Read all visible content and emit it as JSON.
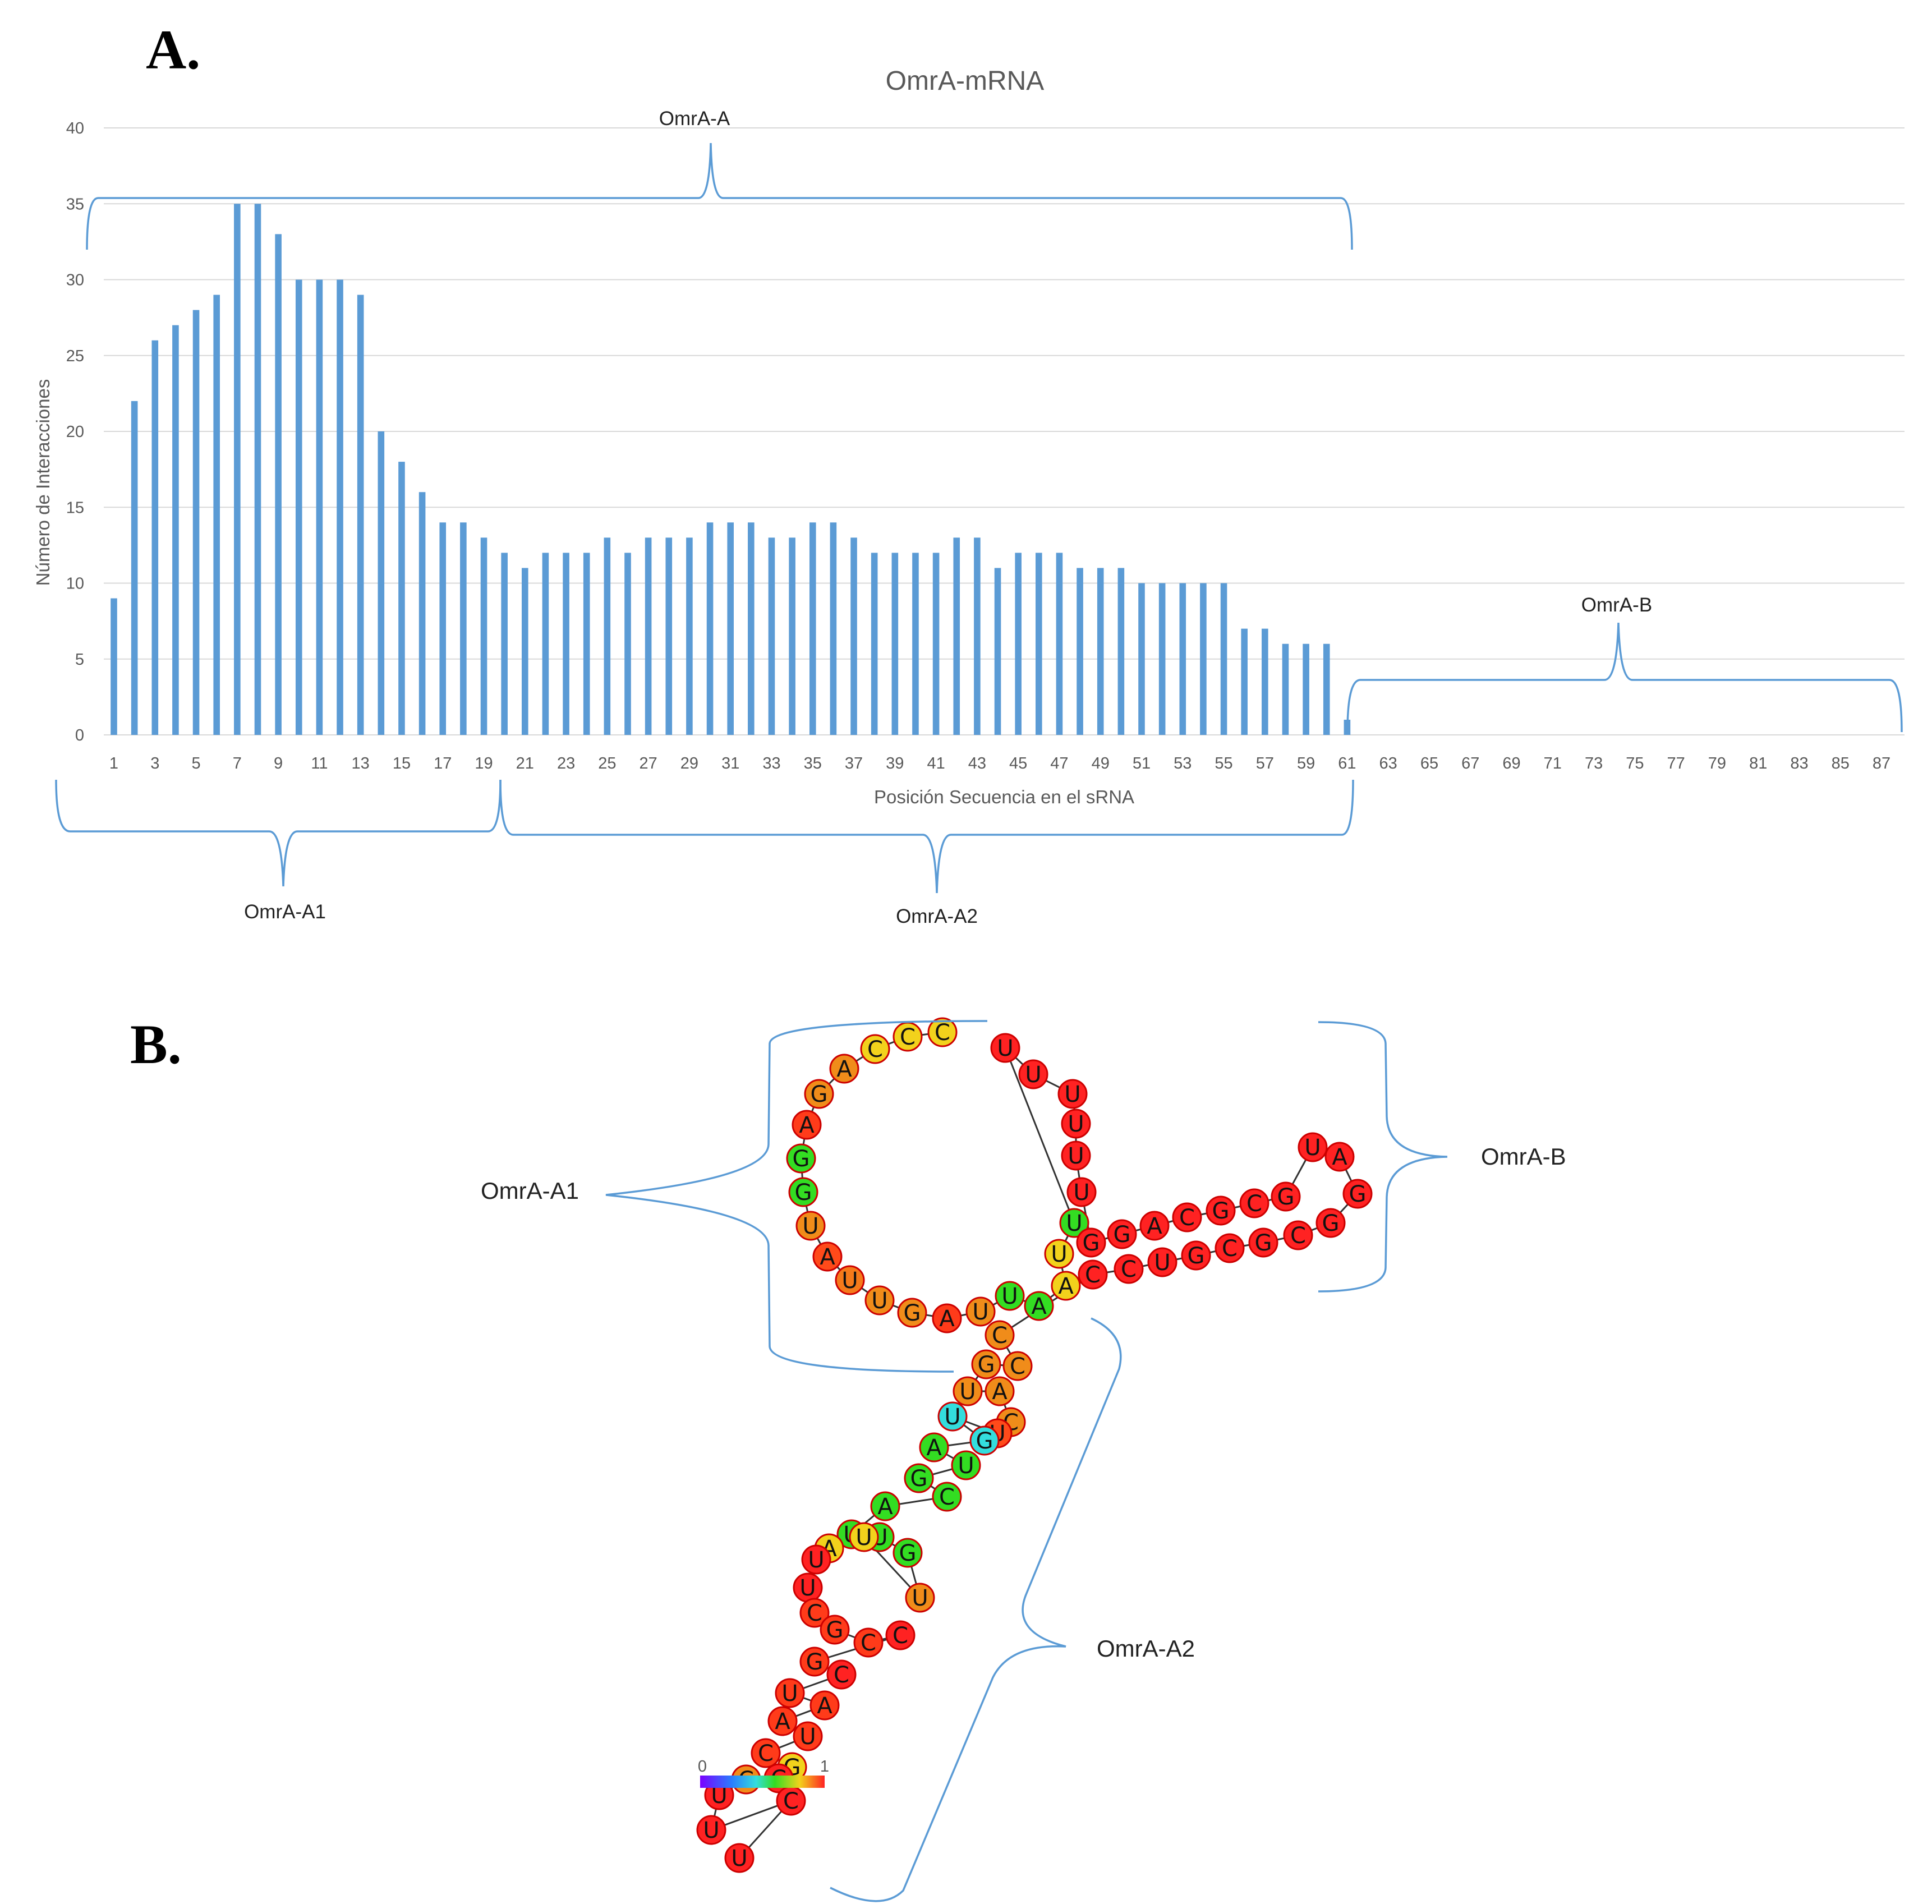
{
  "panel_a_label": "A.",
  "panel_b_label": "B.",
  "chart_data": {
    "type": "bar",
    "title": "OmrA-mRNA",
    "xlabel": "Posición Secuencia en el sRNA",
    "ylabel": "Número de Interacciones",
    "ylim": [
      0,
      40
    ],
    "yticks": [
      0,
      5,
      10,
      15,
      20,
      25,
      30,
      35,
      40
    ],
    "xticks": [
      "1",
      "3",
      "5",
      "7",
      "9",
      "11",
      "13",
      "15",
      "17",
      "19",
      "21",
      "23",
      "25",
      "27",
      "29",
      "31",
      "33",
      "35",
      "37",
      "39",
      "41",
      "43",
      "45",
      "47",
      "49",
      "51",
      "53",
      "55",
      "57",
      "59",
      "61",
      "63",
      "65",
      "67",
      "69",
      "71",
      "73",
      "75",
      "77",
      "79",
      "81",
      "83",
      "85",
      "87"
    ],
    "x_range": [
      1,
      88
    ],
    "grid": true,
    "values": [
      9,
      22,
      26,
      27,
      28,
      29,
      35,
      35,
      33,
      30,
      30,
      30,
      29,
      20,
      18,
      16,
      14,
      14,
      13,
      12,
      11,
      12,
      12,
      12,
      13,
      12,
      13,
      13,
      13,
      14,
      14,
      14,
      13,
      13,
      14,
      14,
      13,
      12,
      12,
      12,
      12,
      13,
      13,
      11,
      12,
      12,
      12,
      11,
      11,
      11,
      10,
      10,
      10,
      10,
      10,
      7,
      7,
      6,
      6,
      6,
      1
    ],
    "annotations": {
      "omra_a": "OmrA-A",
      "omra_a1": "OmrA-A1",
      "omra_a2": "OmrA-A2",
      "omra_b": "OmrA-B"
    }
  },
  "structure": {
    "labels": {
      "omra_a1": "OmrA-A1",
      "omra_a2": "OmrA-A2",
      "omra_b": "OmrA-B"
    },
    "colorbar": {
      "min_label": "0",
      "max_label": "1"
    },
    "nucleotides": [
      {
        "l": "C",
        "c": "#f2d21c"
      },
      {
        "l": "C",
        "c": "#f2d21c"
      },
      {
        "l": "C",
        "c": "#f2d21c"
      },
      {
        "l": "A",
        "c": "#f08c1a"
      },
      {
        "l": "G",
        "c": "#f08c1a"
      },
      {
        "l": "A",
        "c": "#ff3b1a"
      },
      {
        "l": "G",
        "c": "#33dd22"
      },
      {
        "l": "G",
        "c": "#33dd22"
      },
      {
        "l": "U",
        "c": "#f08c1a"
      },
      {
        "l": "A",
        "c": "#ff4a1a"
      },
      {
        "l": "U",
        "c": "#f57a1a"
      },
      {
        "l": "U",
        "c": "#f08c1a"
      },
      {
        "l": "G",
        "c": "#f08c1a"
      },
      {
        "l": "A",
        "c": "#ff3b1a"
      },
      {
        "l": "U",
        "c": "#f08c1a"
      },
      {
        "l": "U",
        "c": "#33dd22"
      },
      {
        "l": "A",
        "c": "#33dd22"
      },
      {
        "l": "A",
        "c": "#f2d21c"
      },
      {
        "l": "U",
        "c": "#f2d21c"
      },
      {
        "l": "U",
        "c": "#33dd22"
      },
      {
        "l": "U",
        "c": "#ff2222"
      },
      {
        "l": "U",
        "c": "#ff2222"
      },
      {
        "l": "U",
        "c": "#ff2222"
      },
      {
        "l": "U",
        "c": "#ff2222"
      },
      {
        "l": "U",
        "c": "#ff2222"
      },
      {
        "l": "U",
        "c": "#ff2222"
      },
      {
        "l": "G",
        "c": "#ff2222"
      },
      {
        "l": "G",
        "c": "#ff2222"
      },
      {
        "l": "A",
        "c": "#ff2222"
      },
      {
        "l": "C",
        "c": "#ff2222"
      },
      {
        "l": "G",
        "c": "#ff2222"
      },
      {
        "l": "C",
        "c": "#ff2222"
      },
      {
        "l": "G",
        "c": "#ff2222"
      },
      {
        "l": "U",
        "c": "#ff2222"
      },
      {
        "l": "A",
        "c": "#ff2222"
      },
      {
        "l": "G",
        "c": "#ff2222"
      },
      {
        "l": "G",
        "c": "#ff2222"
      },
      {
        "l": "C",
        "c": "#ff2222"
      },
      {
        "l": "G",
        "c": "#ff2222"
      },
      {
        "l": "C",
        "c": "#ff2222"
      },
      {
        "l": "G",
        "c": "#ff2222"
      },
      {
        "l": "U",
        "c": "#ff2222"
      },
      {
        "l": "C",
        "c": "#ff2222"
      },
      {
        "l": "C",
        "c": "#ff2222"
      },
      {
        "l": "C",
        "c": "#f08c1a"
      },
      {
        "l": "C",
        "c": "#f08c1a"
      },
      {
        "l": "G",
        "c": "#f08c1a"
      },
      {
        "l": "U",
        "c": "#f08c1a"
      },
      {
        "l": "A",
        "c": "#f08c1a"
      },
      {
        "l": "C",
        "c": "#f08c1a"
      },
      {
        "l": "U",
        "c": "#ff4a1a"
      },
      {
        "l": "U",
        "c": "#33dddd"
      },
      {
        "l": "G",
        "c": "#33dddd"
      },
      {
        "l": "A",
        "c": "#33dd22"
      },
      {
        "l": "U",
        "c": "#33dd22"
      },
      {
        "l": "G",
        "c": "#33dd22"
      },
      {
        "l": "C",
        "c": "#33dd22"
      },
      {
        "l": "A",
        "c": "#33dd22"
      },
      {
        "l": "U",
        "c": "#33dd22"
      },
      {
        "l": "U",
        "c": "#33dd22"
      },
      {
        "l": "G",
        "c": "#33dd22"
      },
      {
        "l": "U",
        "c": "#f08c1a"
      },
      {
        "l": "U",
        "c": "#f2d21c"
      },
      {
        "l": "A",
        "c": "#f2d21c"
      },
      {
        "l": "U",
        "c": "#ff2222"
      },
      {
        "l": "U",
        "c": "#ff2222"
      },
      {
        "l": "C",
        "c": "#ff3b1a"
      },
      {
        "l": "G",
        "c": "#ff3b1a"
      },
      {
        "l": "C",
        "c": "#ff3b1a"
      },
      {
        "l": "C",
        "c": "#ff2222"
      },
      {
        "l": "G",
        "c": "#ff3b1a"
      },
      {
        "l": "C",
        "c": "#ff2222"
      },
      {
        "l": "U",
        "c": "#ff3b1a"
      },
      {
        "l": "A",
        "c": "#ff3b1a"
      },
      {
        "l": "A",
        "c": "#ff3b1a"
      },
      {
        "l": "U",
        "c": "#ff3b1a"
      },
      {
        "l": "C",
        "c": "#ff3b1a"
      },
      {
        "l": "G",
        "c": "#f2d21c"
      },
      {
        "l": "C",
        "c": "#ff2222"
      },
      {
        "l": "C",
        "c": "#f08c1a"
      },
      {
        "l": "U",
        "c": "#ff2222"
      },
      {
        "l": "U",
        "c": "#ff2222"
      },
      {
        "l": "C",
        "c": "#ff2222"
      },
      {
        "l": "U",
        "c": "#ff2222"
      }
    ]
  }
}
